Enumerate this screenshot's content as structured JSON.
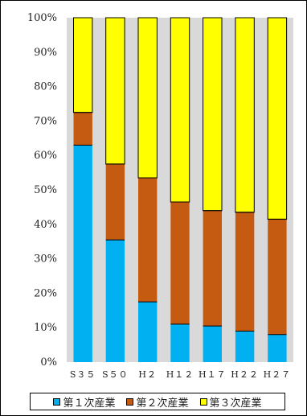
{
  "chart_data": {
    "type": "bar",
    "stacked": true,
    "percent": true,
    "categories": [
      "S35",
      "S50",
      "H2",
      "H12",
      "H17",
      "H22",
      "H27"
    ],
    "category_labels": [
      "S３５",
      "S５０",
      "H２",
      "H１２",
      "H１７",
      "H２２",
      "H２７"
    ],
    "yticks": [
      "0%",
      "10%",
      "20%",
      "30%",
      "40%",
      "50%",
      "60%",
      "70%",
      "80%",
      "90%",
      "100%"
    ],
    "ylim": [
      0,
      100
    ],
    "grid": false,
    "legend_position": "bottom",
    "series": [
      {
        "name": "第１次産業",
        "color": "#00b0f0",
        "values": [
          63,
          35.5,
          17.5,
          11,
          10.5,
          9,
          8
        ]
      },
      {
        "name": "第２次産業",
        "color": "#c55a11",
        "values": [
          9.5,
          22,
          36,
          35.5,
          33.5,
          34.5,
          33.5
        ]
      },
      {
        "name": "第３次産業",
        "color": "#ffff00",
        "values": [
          27.5,
          42.5,
          46.5,
          53.5,
          56,
          56.5,
          58.5
        ]
      }
    ],
    "plot_background": "#d9d9d9"
  }
}
